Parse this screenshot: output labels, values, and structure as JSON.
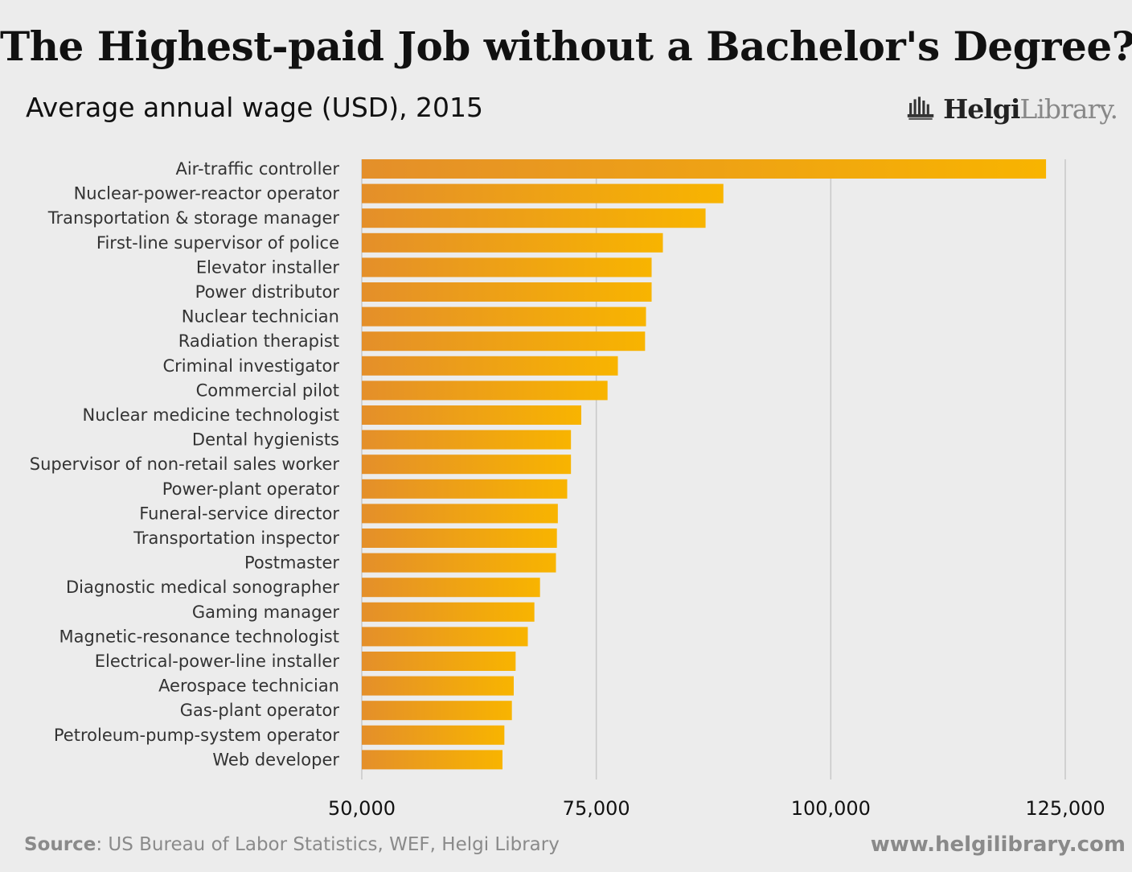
{
  "title": "The Highest-paid Job without a Bachelor's Degree?",
  "subtitle": "Average annual wage (USD), 2015",
  "logo": {
    "text_bold": "Helgi",
    "text_light": "Library."
  },
  "footer": {
    "source_label": "Source",
    "source_text": ": US Bureau of Labor Statistics, WEF, Helgi Library",
    "website": "www.helgilibrary.com"
  },
  "colors": {
    "bar_start": "#e48f2a",
    "bar_end": "#f8b400",
    "grid": "#c8c8c8",
    "background": "#ececec"
  },
  "chart_data": {
    "type": "bar",
    "orientation": "horizontal",
    "title": "The Highest-paid Job without a Bachelor's Degree?",
    "subtitle": "Average annual wage (USD), 2015",
    "xlim": [
      50000,
      125000
    ],
    "xticks": [
      50000,
      75000,
      100000,
      125000
    ],
    "xtick_labels": [
      "50,000",
      "75,000",
      "100,000",
      "125,000"
    ],
    "grid": true,
    "categories": [
      "Air-traffic controller",
      "Nuclear-power-reactor operator",
      "Transportation & storage manager",
      "First-line supervisor of police",
      "Elevator installer",
      "Power distributor",
      "Nuclear technician",
      "Radiation therapist",
      "Criminal investigator",
      "Commercial pilot",
      "Nuclear medicine technologist",
      "Dental hygienists",
      "Supervisor of non-retail sales worker",
      "Power-plant operator",
      "Funeral-service director",
      "Transportation inspector",
      "Postmaster",
      "Diagnostic medical sonographer",
      "Gaming manager",
      "Magnetic-resonance technologist",
      "Electrical-power-line installer",
      "Aerospace technician",
      "Gas-plant operator",
      "Petroleum-pump-system operator",
      "Web developer"
    ],
    "values": [
      122950,
      88550,
      86650,
      82100,
      80900,
      80900,
      80300,
      80200,
      77300,
      76200,
      73400,
      72300,
      72300,
      71900,
      70900,
      70800,
      70700,
      69000,
      68400,
      67700,
      66400,
      66200,
      66000,
      65200,
      65000
    ]
  }
}
